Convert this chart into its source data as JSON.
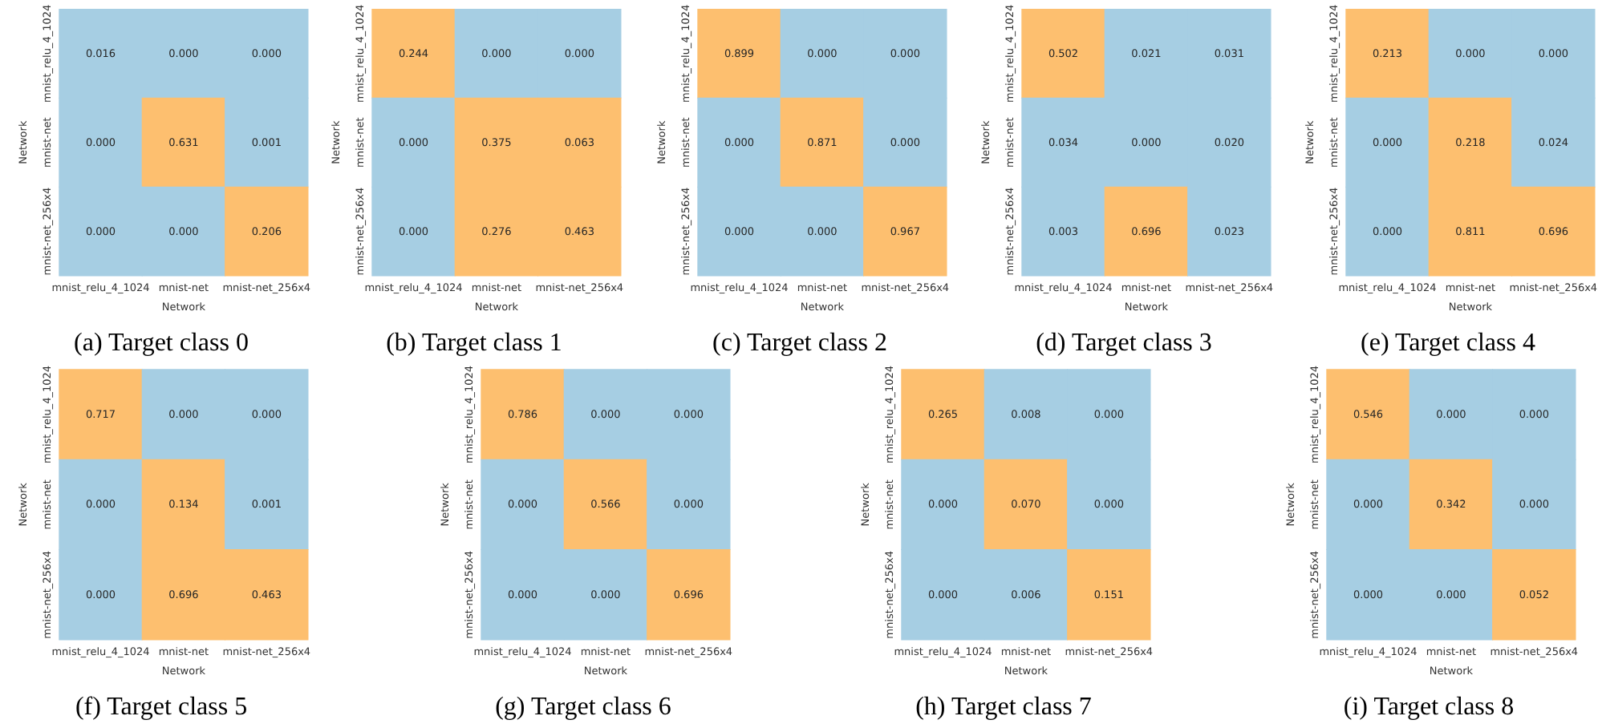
{
  "chart_data": [
    {
      "type": "heatmap",
      "title": "(a) Target class 0",
      "xlabel": "Network",
      "ylabel": "Network",
      "categories": [
        "mnist_relu_4_1024",
        "mnist-net",
        "mnist-net_256x4"
      ],
      "y_categories": [
        "mnist_relu_4_1024",
        "mnist-net",
        "mnist-net_256x4"
      ],
      "cells": [
        [
          0.016,
          0,
          0
        ],
        [
          0,
          0.631,
          0.001
        ],
        [
          0,
          0,
          0.206
        ]
      ],
      "cell_labels": [
        [
          "0.016",
          "0.000",
          "0.000"
        ],
        [
          "0.000",
          "0.631",
          "0.001"
        ],
        [
          "0.000",
          "0.000",
          "0.206"
        ]
      ],
      "colors": [
        [
          "#a6cee3",
          "#a6cee3",
          "#a6cee3"
        ],
        [
          "#a6cee3",
          "#fdbf6f",
          "#a6cee3"
        ],
        [
          "#a6cee3",
          "#a6cee3",
          "#fdbf6f"
        ]
      ]
    },
    {
      "type": "heatmap",
      "title": "(b) Target class 1",
      "xlabel": "Network",
      "ylabel": "Network",
      "categories": [
        "mnist_relu_4_1024",
        "mnist-net",
        "mnist-net_256x4"
      ],
      "y_categories": [
        "mnist_relu_4_1024",
        "mnist-net",
        "mnist-net_256x4"
      ],
      "cells": [
        [
          0.244,
          0,
          0
        ],
        [
          0,
          0.375,
          0.063
        ],
        [
          0,
          0.276,
          0.463
        ]
      ],
      "cell_labels": [
        [
          "0.244",
          "0.000",
          "0.000"
        ],
        [
          "0.000",
          "0.375",
          "0.063"
        ],
        [
          "0.000",
          "0.276",
          "0.463"
        ]
      ],
      "colors": [
        [
          "#fdbf6f",
          "#a6cee3",
          "#a6cee3"
        ],
        [
          "#a6cee3",
          "#fdbf6f",
          "#fdbf6f"
        ],
        [
          "#a6cee3",
          "#fdbf6f",
          "#fdbf6f"
        ]
      ]
    },
    {
      "type": "heatmap",
      "title": "(c) Target class 2",
      "xlabel": "Network",
      "ylabel": "Network",
      "categories": [
        "mnist_relu_4_1024",
        "mnist-net",
        "mnist-net_256x4"
      ],
      "y_categories": [
        "mnist_relu_4_1024",
        "mnist-net",
        "mnist-net_256x4"
      ],
      "cells": [
        [
          0.899,
          0,
          0
        ],
        [
          0,
          0.871,
          0
        ],
        [
          0,
          0,
          0.967
        ]
      ],
      "cell_labels": [
        [
          "0.899",
          "0.000",
          "0.000"
        ],
        [
          "0.000",
          "0.871",
          "0.000"
        ],
        [
          "0.000",
          "0.000",
          "0.967"
        ]
      ],
      "colors": [
        [
          "#fdbf6f",
          "#a6cee3",
          "#a6cee3"
        ],
        [
          "#a6cee3",
          "#fdbf6f",
          "#a6cee3"
        ],
        [
          "#a6cee3",
          "#a6cee3",
          "#fdbf6f"
        ]
      ]
    },
    {
      "type": "heatmap",
      "title": "(d) Target class 3",
      "xlabel": "Network",
      "ylabel": "Network",
      "categories": [
        "mnist_relu_4_1024",
        "mnist-net",
        "mnist-net_256x4"
      ],
      "y_categories": [
        "mnist_relu_4_1024",
        "mnist-net",
        "mnist-net_256x4"
      ],
      "cells": [
        [
          0.502,
          0.021,
          0.031
        ],
        [
          0.034,
          0,
          0.02
        ],
        [
          0.003,
          0.696,
          0.023
        ]
      ],
      "cell_labels": [
        [
          "0.502",
          "0.021",
          "0.031"
        ],
        [
          "0.034",
          "0.000",
          "0.020"
        ],
        [
          "0.003",
          "0.696",
          "0.023"
        ]
      ],
      "colors": [
        [
          "#fdbf6f",
          "#a6cee3",
          "#a6cee3"
        ],
        [
          "#a6cee3",
          "#a6cee3",
          "#a6cee3"
        ],
        [
          "#a6cee3",
          "#fdbf6f",
          "#a6cee3"
        ]
      ]
    },
    {
      "type": "heatmap",
      "title": "(e) Target class 4",
      "xlabel": "Network",
      "ylabel": "Network",
      "categories": [
        "mnist_relu_4_1024",
        "mnist-net",
        "mnist-net_256x4"
      ],
      "y_categories": [
        "mnist_relu_4_1024",
        "mnist-net",
        "mnist-net_256x4"
      ],
      "cells": [
        [
          0.213,
          0,
          0
        ],
        [
          0,
          0.218,
          0.024
        ],
        [
          0,
          0.811,
          0.696
        ]
      ],
      "cell_labels": [
        [
          "0.213",
          "0.000",
          "0.000"
        ],
        [
          "0.000",
          "0.218",
          "0.024"
        ],
        [
          "0.000",
          "0.811",
          "0.696"
        ]
      ],
      "colors": [
        [
          "#fdbf6f",
          "#a6cee3",
          "#a6cee3"
        ],
        [
          "#a6cee3",
          "#fdbf6f",
          "#a6cee3"
        ],
        [
          "#a6cee3",
          "#fdbf6f",
          "#fdbf6f"
        ]
      ]
    },
    {
      "type": "heatmap",
      "title": "(f) Target class 5",
      "xlabel": "Network",
      "ylabel": "Network",
      "categories": [
        "mnist_relu_4_1024",
        "mnist-net",
        "mnist-net_256x4"
      ],
      "y_categories": [
        "mnist_relu_4_1024",
        "mnist-net",
        "mnist-net_256x4"
      ],
      "cells": [
        [
          0.717,
          0,
          0
        ],
        [
          0,
          0.134,
          0.001
        ],
        [
          0,
          0.696,
          0.463
        ]
      ],
      "cell_labels": [
        [
          "0.717",
          "0.000",
          "0.000"
        ],
        [
          "0.000",
          "0.134",
          "0.001"
        ],
        [
          "0.000",
          "0.696",
          "0.463"
        ]
      ],
      "colors": [
        [
          "#fdbf6f",
          "#a6cee3",
          "#a6cee3"
        ],
        [
          "#a6cee3",
          "#fdbf6f",
          "#a6cee3"
        ],
        [
          "#a6cee3",
          "#fdbf6f",
          "#fdbf6f"
        ]
      ]
    },
    {
      "type": "heatmap",
      "title": "(g) Target class 6",
      "xlabel": "Network",
      "ylabel": "Network",
      "categories": [
        "mnist_relu_4_1024",
        "mnist-net",
        "mnist-net_256x4"
      ],
      "y_categories": [
        "mnist_relu_4_1024",
        "mnist-net",
        "mnist-net_256x4"
      ],
      "cells": [
        [
          0.786,
          0,
          0
        ],
        [
          0,
          0.566,
          0
        ],
        [
          0,
          0,
          0.696
        ]
      ],
      "cell_labels": [
        [
          "0.786",
          "0.000",
          "0.000"
        ],
        [
          "0.000",
          "0.566",
          "0.000"
        ],
        [
          "0.000",
          "0.000",
          "0.696"
        ]
      ],
      "colors": [
        [
          "#fdbf6f",
          "#a6cee3",
          "#a6cee3"
        ],
        [
          "#a6cee3",
          "#fdbf6f",
          "#a6cee3"
        ],
        [
          "#a6cee3",
          "#a6cee3",
          "#fdbf6f"
        ]
      ]
    },
    {
      "type": "heatmap",
      "title": "(h) Target class 7",
      "xlabel": "Network",
      "ylabel": "Network",
      "categories": [
        "mnist_relu_4_1024",
        "mnist-net",
        "mnist-net_256x4"
      ],
      "y_categories": [
        "mnist_relu_4_1024",
        "mnist-net",
        "mnist-net_256x4"
      ],
      "cells": [
        [
          0.265,
          0.008,
          0
        ],
        [
          0,
          0.07,
          0
        ],
        [
          0,
          0.006,
          0.151
        ]
      ],
      "cell_labels": [
        [
          "0.265",
          "0.008",
          "0.000"
        ],
        [
          "0.000",
          "0.070",
          "0.000"
        ],
        [
          "0.000",
          "0.006",
          "0.151"
        ]
      ],
      "colors": [
        [
          "#fdbf6f",
          "#a6cee3",
          "#a6cee3"
        ],
        [
          "#a6cee3",
          "#fdbf6f",
          "#a6cee3"
        ],
        [
          "#a6cee3",
          "#a6cee3",
          "#fdbf6f"
        ]
      ]
    },
    {
      "type": "heatmap",
      "title": "(i) Target class 8",
      "xlabel": "Network",
      "ylabel": "Network",
      "categories": [
        "mnist_relu_4_1024",
        "mnist-net",
        "mnist-net_256x4"
      ],
      "y_categories": [
        "mnist_relu_4_1024",
        "mnist-net",
        "mnist-net_256x4"
      ],
      "cells": [
        [
          0.546,
          0,
          0
        ],
        [
          0,
          0.342,
          0
        ],
        [
          0,
          0,
          0.052
        ]
      ],
      "cell_labels": [
        [
          "0.546",
          "0.000",
          "0.000"
        ],
        [
          "0.000",
          "0.342",
          "0.000"
        ],
        [
          "0.000",
          "0.000",
          "0.052"
        ]
      ],
      "colors": [
        [
          "#fdbf6f",
          "#a6cee3",
          "#a6cee3"
        ],
        [
          "#a6cee3",
          "#fdbf6f",
          "#a6cee3"
        ],
        [
          "#a6cee3",
          "#a6cee3",
          "#fdbf6f"
        ]
      ]
    }
  ]
}
